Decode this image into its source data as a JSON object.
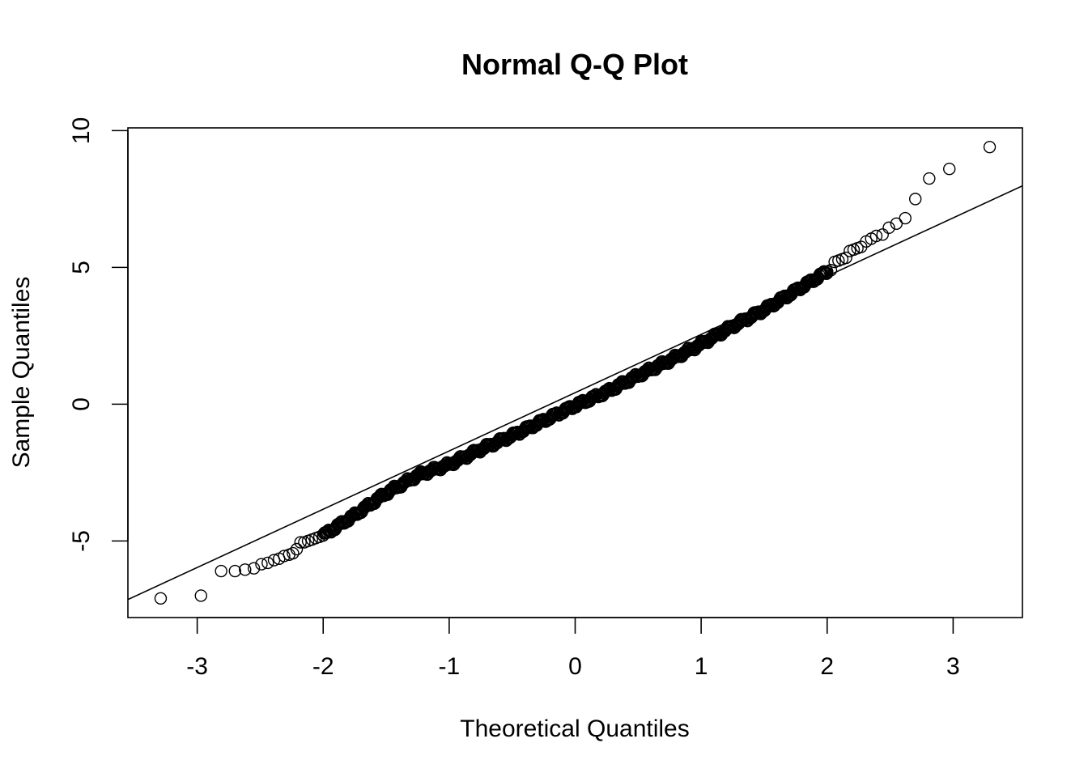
{
  "chart_data": {
    "type": "scatter",
    "title": "Normal Q-Q Plot",
    "xlabel": "Theoretical Quantiles",
    "ylabel": "Sample Quantiles",
    "xlim": [
      -3.55,
      3.55
    ],
    "ylim": [
      -7.8,
      10.1
    ],
    "x_ticks": [
      -3,
      -2,
      -1,
      0,
      1,
      2,
      3
    ],
    "x_tick_labels": [
      "-3",
      "-2",
      "-1",
      "0",
      "1",
      "2",
      "3"
    ],
    "y_ticks": [
      -5,
      0,
      5,
      10
    ],
    "y_tick_labels": [
      "-5",
      "0",
      "5",
      "10"
    ],
    "grid": false,
    "legend": "none",
    "reference_line": {
      "intercept": 0.42,
      "slope": 2.13
    },
    "tail_points": [
      {
        "x": -3.29,
        "y": -7.1
      },
      {
        "x": -2.97,
        "y": -7.0
      },
      {
        "x": -2.81,
        "y": -6.1
      },
      {
        "x": -2.7,
        "y": -6.1
      },
      {
        "x": -2.62,
        "y": -6.05
      },
      {
        "x": -2.55,
        "y": -6.0
      },
      {
        "x": -2.49,
        "y": -5.85
      },
      {
        "x": -2.44,
        "y": -5.8
      },
      {
        "x": -2.39,
        "y": -5.7
      },
      {
        "x": -2.35,
        "y": -5.65
      },
      {
        "x": -2.31,
        "y": -5.55
      },
      {
        "x": -2.27,
        "y": -5.5
      },
      {
        "x": -2.24,
        "y": -5.45
      },
      {
        "x": -2.21,
        "y": -5.3
      },
      {
        "x": -2.18,
        "y": -5.05
      },
      {
        "x": -2.15,
        "y": -5.05
      },
      {
        "x": -2.12,
        "y": -5.0
      },
      {
        "x": -2.09,
        "y": -4.95
      },
      {
        "x": -2.06,
        "y": -4.9
      },
      {
        "x": -2.03,
        "y": -4.85
      },
      {
        "x": -2.0,
        "y": -4.8
      },
      {
        "x": 2.0,
        "y": 4.85
      },
      {
        "x": 2.03,
        "y": 4.9
      },
      {
        "x": 2.06,
        "y": 5.2
      },
      {
        "x": 2.09,
        "y": 5.25
      },
      {
        "x": 2.12,
        "y": 5.3
      },
      {
        "x": 2.15,
        "y": 5.35
      },
      {
        "x": 2.18,
        "y": 5.6
      },
      {
        "x": 2.21,
        "y": 5.65
      },
      {
        "x": 2.24,
        "y": 5.7
      },
      {
        "x": 2.27,
        "y": 5.75
      },
      {
        "x": 2.31,
        "y": 5.95
      },
      {
        "x": 2.35,
        "y": 6.05
      },
      {
        "x": 2.39,
        "y": 6.15
      },
      {
        "x": 2.44,
        "y": 6.2
      },
      {
        "x": 2.49,
        "y": 6.45
      },
      {
        "x": 2.55,
        "y": 6.6
      },
      {
        "x": 2.62,
        "y": 6.8
      },
      {
        "x": 2.7,
        "y": 7.5
      },
      {
        "x": 2.81,
        "y": 8.25
      },
      {
        "x": 2.97,
        "y": 8.6
      },
      {
        "x": 3.29,
        "y": 9.4
      }
    ],
    "core_curve": [
      {
        "x": -2.0,
        "y": -4.8
      },
      {
        "x": -1.75,
        "y": -4.05
      },
      {
        "x": -1.5,
        "y": -3.25
      },
      {
        "x": -1.25,
        "y": -2.6
      },
      {
        "x": -1.0,
        "y": -2.2
      },
      {
        "x": -0.75,
        "y": -1.65
      },
      {
        "x": -0.5,
        "y": -1.15
      },
      {
        "x": -0.25,
        "y": -0.6
      },
      {
        "x": 0.0,
        "y": -0.05
      },
      {
        "x": 0.25,
        "y": 0.45
      },
      {
        "x": 0.5,
        "y": 1.05
      },
      {
        "x": 0.75,
        "y": 1.6
      },
      {
        "x": 1.0,
        "y": 2.2
      },
      {
        "x": 1.25,
        "y": 2.85
      },
      {
        "x": 1.5,
        "y": 3.45
      },
      {
        "x": 1.75,
        "y": 4.15
      },
      {
        "x": 2.0,
        "y": 4.85
      }
    ],
    "core_point_count": 640
  }
}
